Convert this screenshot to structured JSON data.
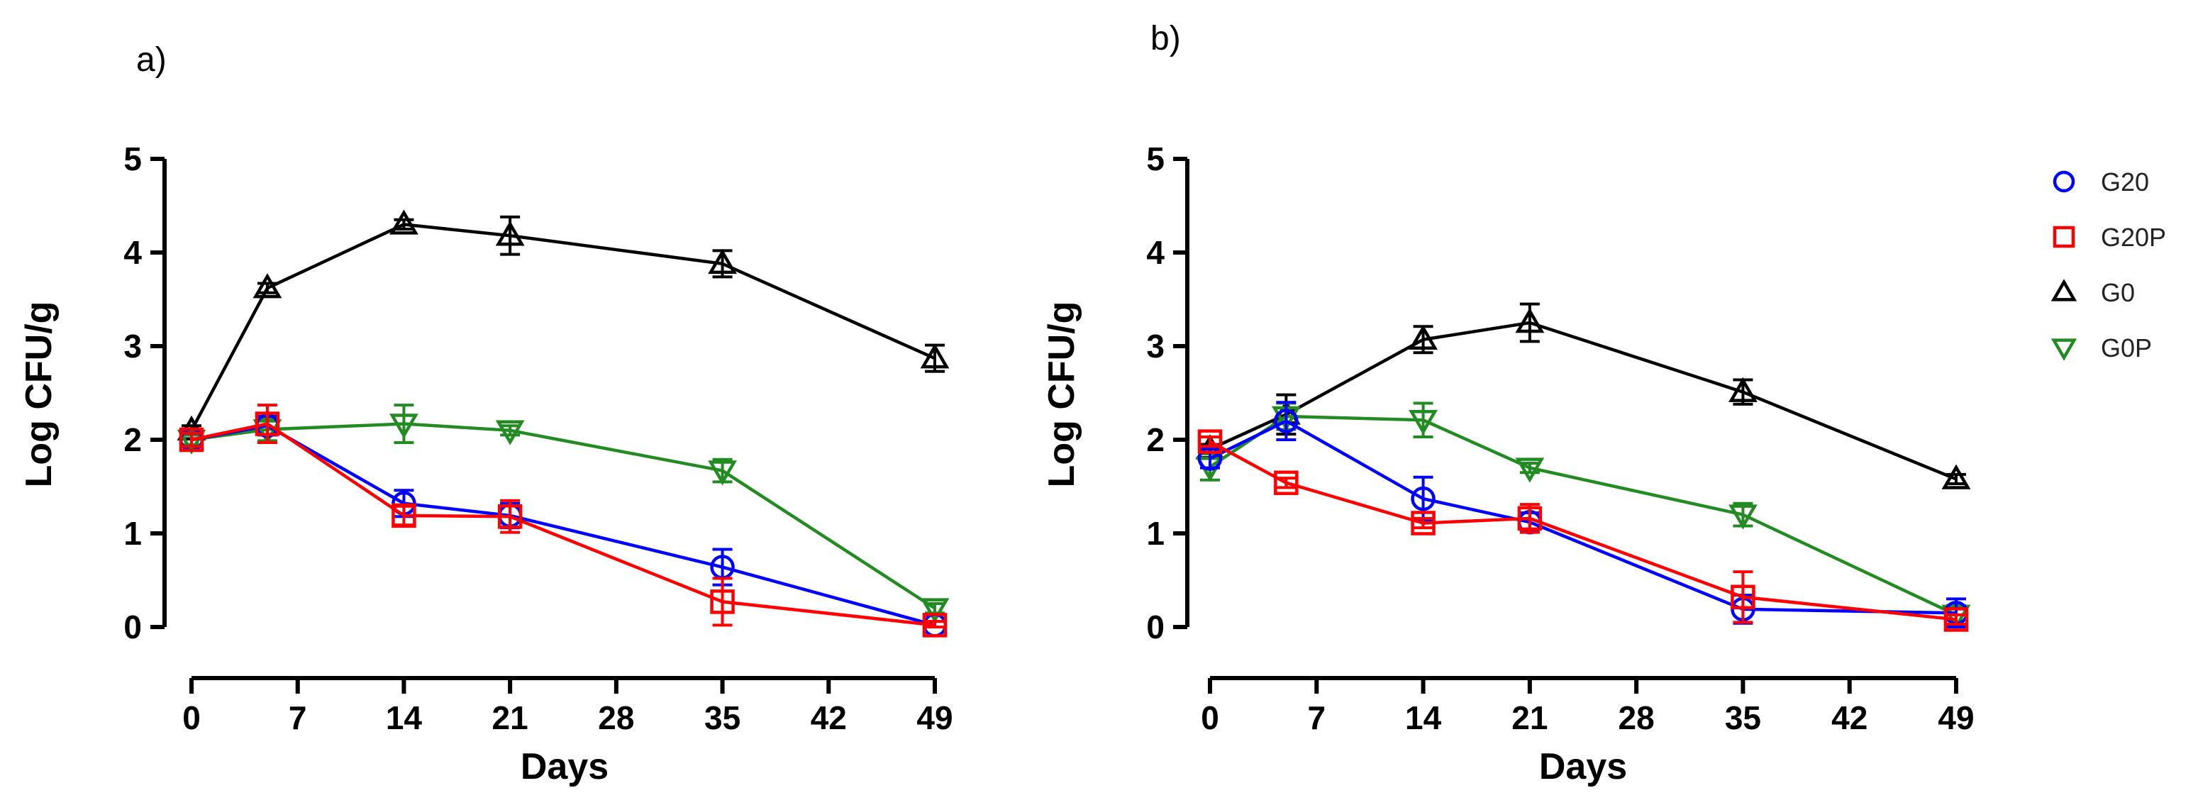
{
  "panels": [
    {
      "label": "a)",
      "chart_data": {
        "type": "line",
        "title": "",
        "xlabel": "Days",
        "ylabel": "Log CFU/g",
        "xlim": [
          0,
          49
        ],
        "ylim": [
          0,
          5
        ],
        "xticks": [
          "0",
          "7",
          "14",
          "21",
          "28",
          "35",
          "42",
          "49"
        ],
        "yticks": [
          "0",
          "1",
          "2",
          "3",
          "4",
          "5"
        ],
        "grid": false,
        "series": [
          {
            "name": "G20",
            "color": "#0000ff",
            "marker": "circle",
            "x": [
              0,
              5,
              14,
              21,
              35,
              49
            ],
            "y": [
              2.0,
              2.15,
              1.32,
              1.19,
              0.64,
              0.02
            ],
            "err": [
              0.07,
              0.1,
              0.14,
              0.13,
              0.19,
              0.04
            ]
          },
          {
            "name": "G20P",
            "color": "#ff0000",
            "marker": "square",
            "x": [
              0,
              5,
              14,
              21,
              35,
              49
            ],
            "y": [
              2.0,
              2.17,
              1.19,
              1.18,
              0.27,
              0.02
            ],
            "err": [
              0.07,
              0.2,
              0.1,
              0.17,
              0.25,
              0.04
            ]
          },
          {
            "name": "G0",
            "color": "#000000",
            "marker": "triangle-up",
            "x": [
              0,
              5,
              14,
              21,
              35,
              49
            ],
            "y": [
              2.1,
              3.62,
              4.3,
              4.18,
              3.88,
              2.87
            ],
            "err": [
              0.05,
              0.05,
              0.05,
              0.2,
              0.14,
              0.14
            ]
          },
          {
            "name": "G0P",
            "color": "#228b22",
            "marker": "triangle-down",
            "x": [
              0,
              5,
              14,
              21,
              35,
              49
            ],
            "y": [
              2.0,
              2.11,
              2.17,
              2.1,
              1.67,
              0.2
            ],
            "err": [
              0.05,
              0.12,
              0.2,
              0.05,
              0.12,
              0.05
            ]
          }
        ]
      }
    },
    {
      "label": "b)",
      "chart_data": {
        "type": "line",
        "title": "",
        "xlabel": "Days",
        "ylabel": "Log CFU/g",
        "xlim": [
          0,
          49
        ],
        "ylim": [
          0,
          5
        ],
        "xticks": [
          "0",
          "7",
          "14",
          "21",
          "28",
          "35",
          "42",
          "49"
        ],
        "yticks": [
          "0",
          "1",
          "2",
          "3",
          "4",
          "5"
        ],
        "grid": false,
        "series": [
          {
            "name": "G20",
            "color": "#0000ff",
            "marker": "circle",
            "x": [
              0,
              5,
              14,
              21,
              35,
              49
            ],
            "y": [
              1.8,
              2.2,
              1.37,
              1.12,
              0.19,
              0.15
            ],
            "err": [
              0.1,
              0.2,
              0.23,
              0.1,
              0.15,
              0.15
            ]
          },
          {
            "name": "G20P",
            "color": "#ff0000",
            "marker": "square",
            "x": [
              0,
              5,
              14,
              21,
              35,
              49
            ],
            "y": [
              1.98,
              1.54,
              1.11,
              1.16,
              0.32,
              0.08
            ],
            "err": [
              0.05,
              0.05,
              0.05,
              0.15,
              0.27,
              0.05
            ]
          },
          {
            "name": "G0",
            "color": "#000000",
            "marker": "triangle-up",
            "x": [
              0,
              5,
              14,
              21,
              35,
              49
            ],
            "y": [
              1.9,
              2.27,
              3.07,
              3.25,
              2.51,
              1.58
            ],
            "err": [
              0.05,
              0.21,
              0.14,
              0.2,
              0.13,
              0.05
            ]
          },
          {
            "name": "G0P",
            "color": "#228b22",
            "marker": "triangle-down",
            "x": [
              0,
              5,
              14,
              21,
              35,
              49
            ],
            "y": [
              1.71,
              2.25,
              2.21,
              1.7,
              1.2,
              0.13
            ],
            "err": [
              0.14,
              0.14,
              0.18,
              0.05,
              0.12,
              0.1
            ]
          }
        ]
      }
    }
  ],
  "legend": {
    "placement": "right",
    "items": [
      {
        "name": "G20",
        "color": "#0000ff",
        "marker": "circle"
      },
      {
        "name": "G20P",
        "color": "#ff0000",
        "marker": "square"
      },
      {
        "name": "G0",
        "color": "#000000",
        "marker": "triangle-up"
      },
      {
        "name": "G0P",
        "color": "#228b22",
        "marker": "triangle-down"
      }
    ]
  }
}
